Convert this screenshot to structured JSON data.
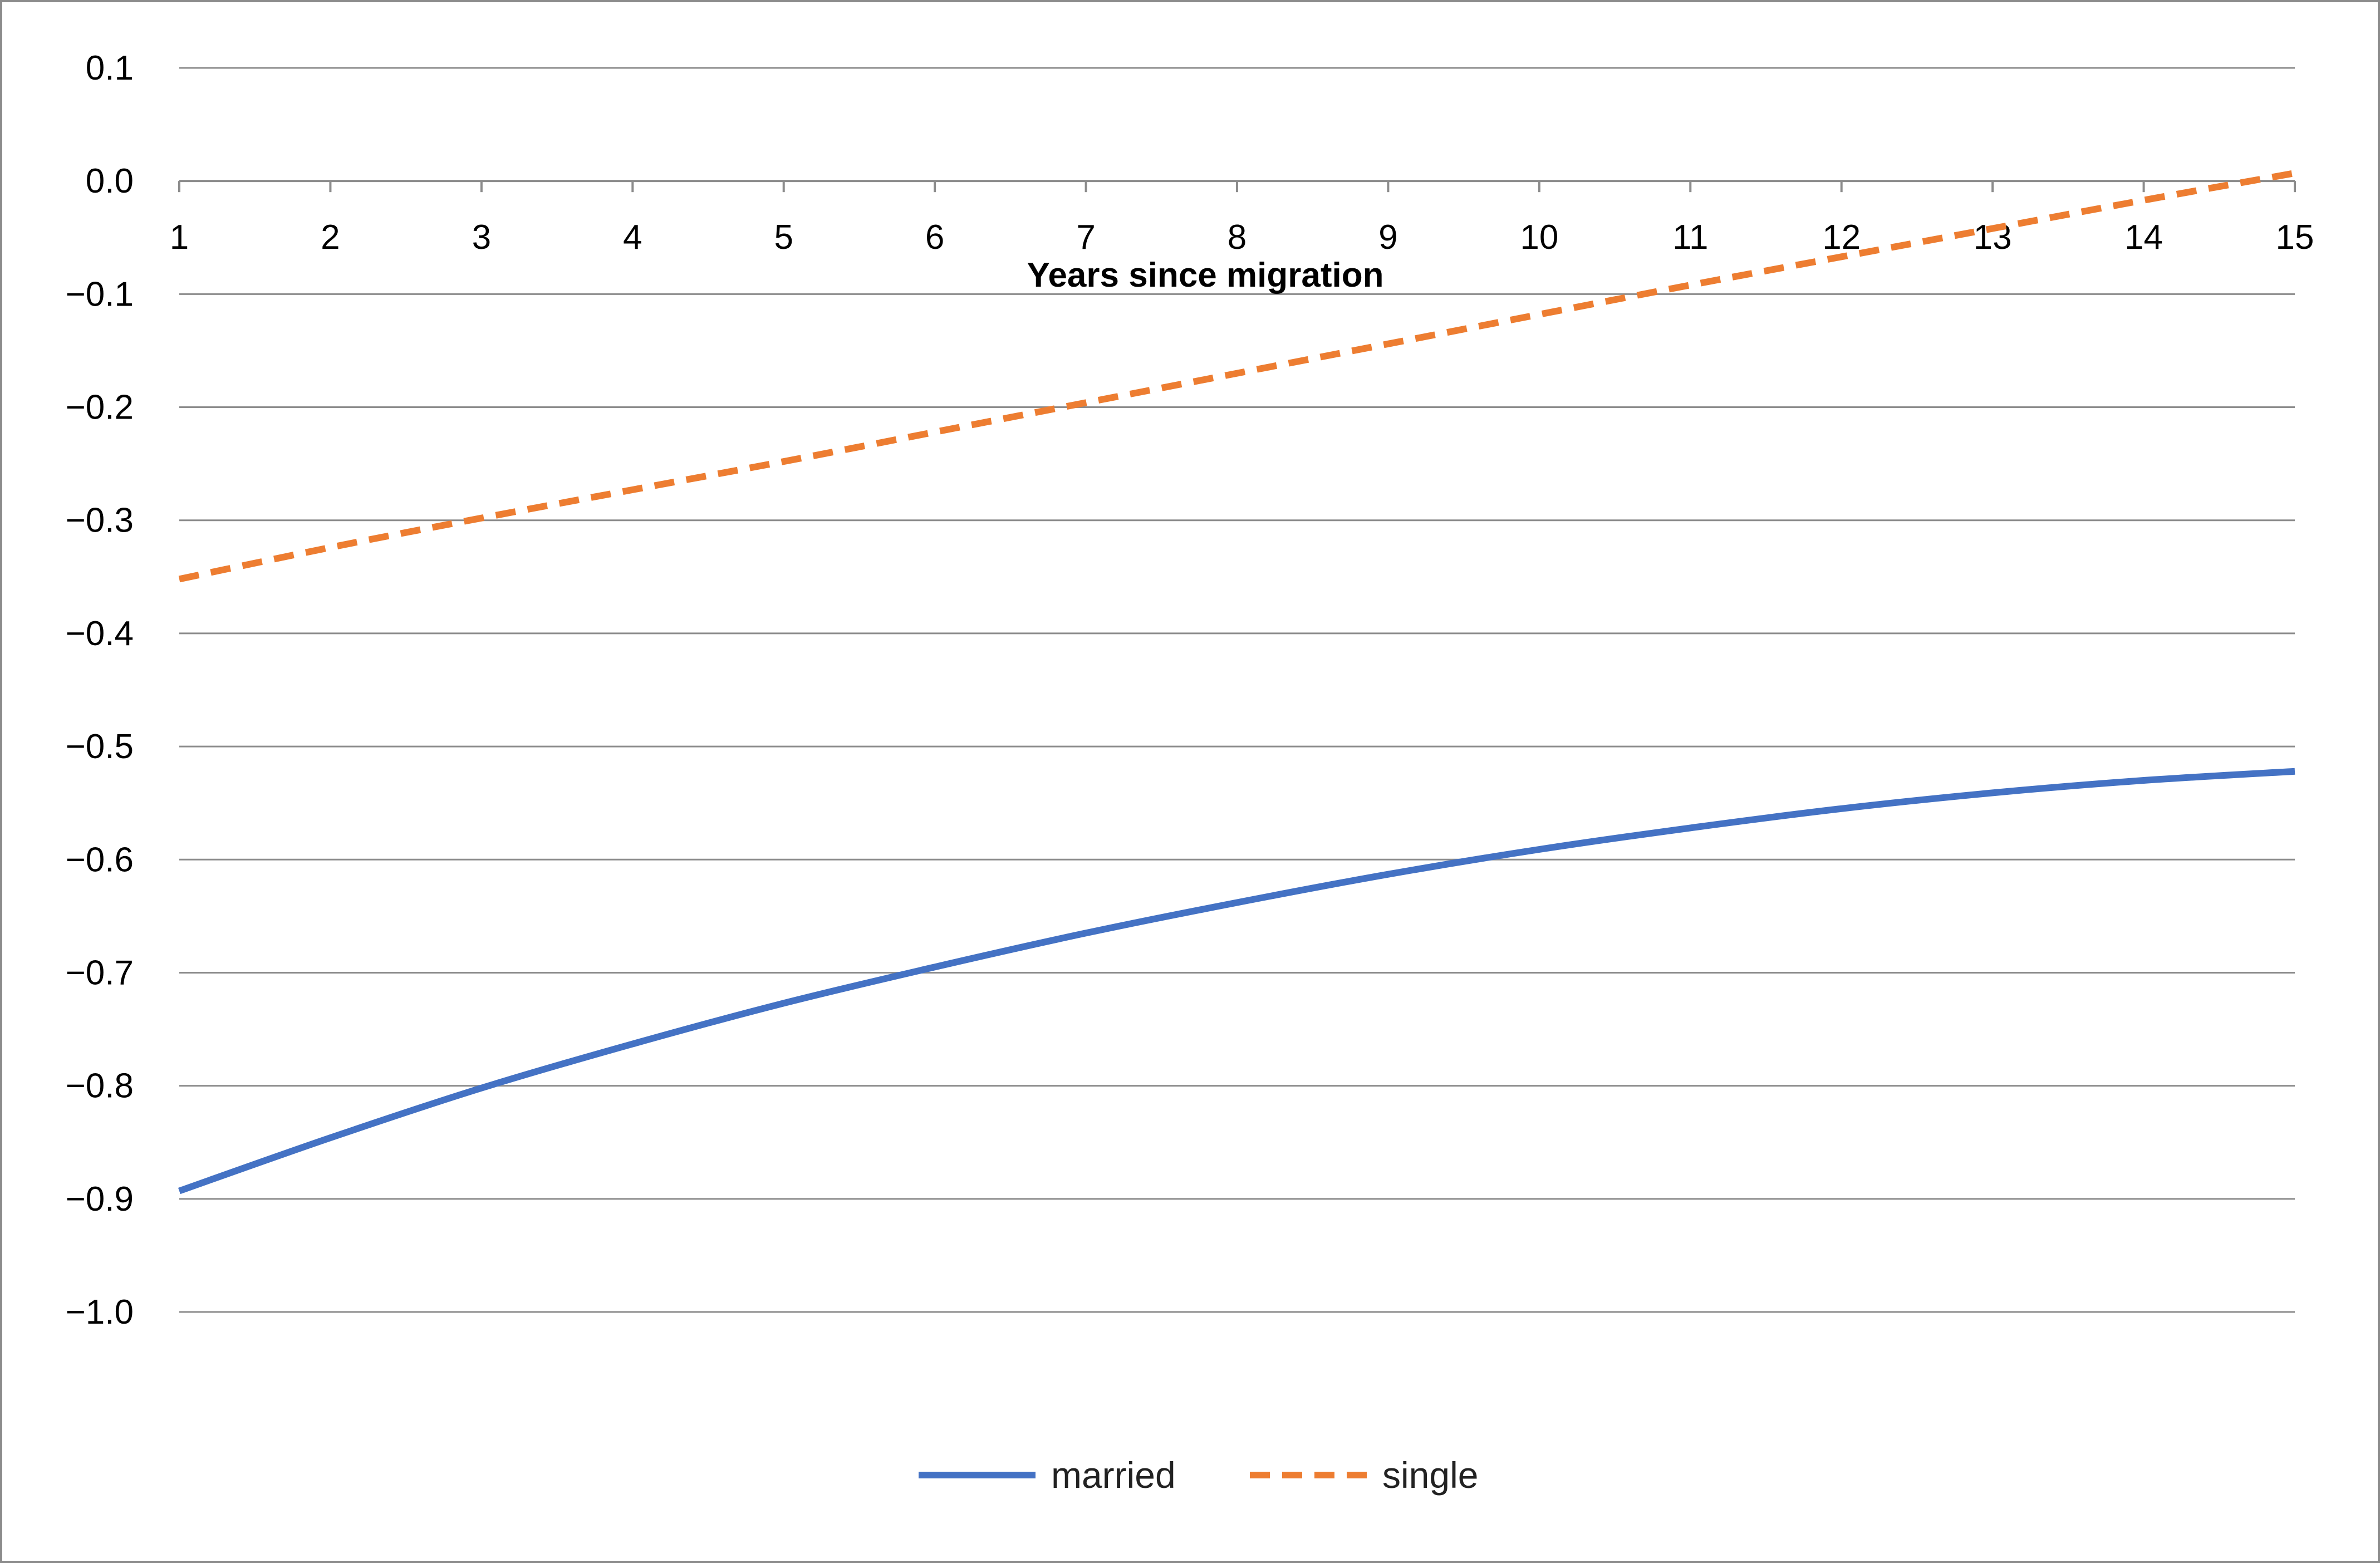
{
  "chart_data": {
    "type": "line",
    "title": "",
    "xlabel": "Years since migration",
    "ylabel": "",
    "x": [
      1,
      2,
      3,
      4,
      5,
      6,
      7,
      8,
      9,
      10,
      11,
      12,
      13,
      14,
      15
    ],
    "xlim": [
      1,
      15
    ],
    "ylim": [
      -1.0,
      0.1
    ],
    "yticks": [
      "0.1",
      "0.0",
      "−0.1",
      "−0.2",
      "−0.3",
      "−0.4",
      "−0.5",
      "−0.6",
      "−0.7",
      "−0.8",
      "−0.9",
      "−1.0"
    ],
    "xticks": [
      "1",
      "2",
      "3",
      "4",
      "5",
      "6",
      "7",
      "8",
      "9",
      "10",
      "11",
      "12",
      "13",
      "14",
      "15"
    ],
    "grid": "horizontal",
    "legend_position": "bottom-center",
    "series": [
      {
        "name": "married",
        "style": "solid",
        "color": "#4472C4",
        "values": [
          -0.893,
          -0.846,
          -0.802,
          -0.763,
          -0.727,
          -0.695,
          -0.665,
          -0.638,
          -0.613,
          -0.591,
          -0.572,
          -0.555,
          -0.541,
          -0.53,
          -0.522
        ]
      },
      {
        "name": "single",
        "style": "dashed",
        "color": "#ED7D31",
        "values": [
          -0.352,
          -0.324,
          -0.298,
          -0.273,
          -0.248,
          -0.222,
          -0.196,
          -0.17,
          -0.144,
          -0.118,
          -0.092,
          -0.067,
          -0.042,
          -0.017,
          0.007
        ]
      }
    ]
  }
}
